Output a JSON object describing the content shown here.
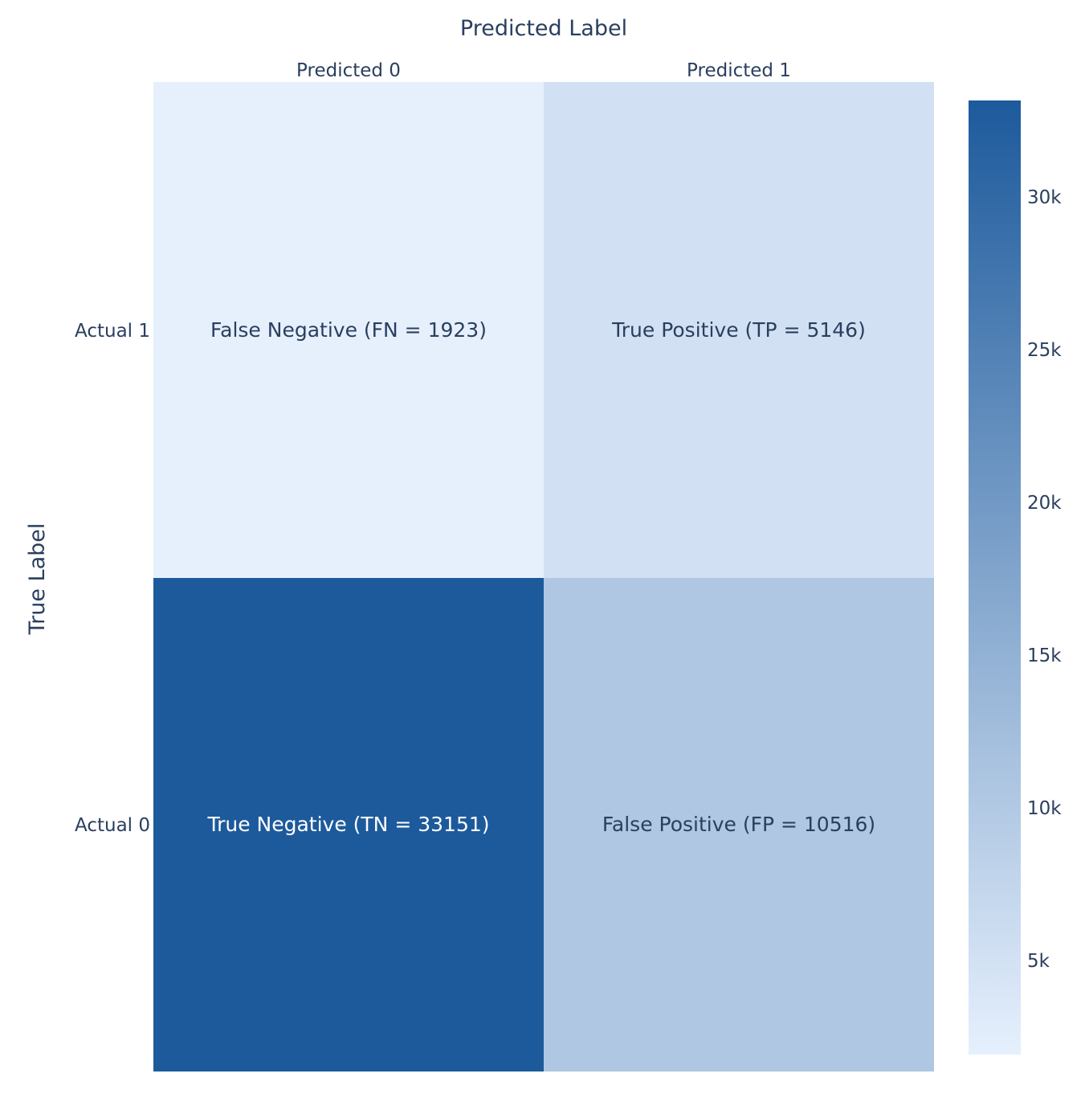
{
  "chart_data": {
    "type": "heatmap",
    "title": "",
    "xlabel": "Predicted Label",
    "ylabel": "True Label",
    "x_categories": [
      "Predicted 0",
      "Predicted 1"
    ],
    "y_categories": [
      "Actual 1",
      "Actual 0"
    ],
    "z": [
      [
        1923,
        5146
      ],
      [
        33151,
        10516
      ]
    ],
    "cell_text": [
      [
        "False Negative (FN = 1923)",
        "True Positive (TP = 5146)"
      ],
      [
        "True Negative (TN = 33151)",
        "False Positive (FP = 10516)"
      ]
    ],
    "colorscale": [
      "#e6f0fd",
      "#1d5a9c"
    ],
    "zmin": 1923,
    "zmax": 33151,
    "colorbar_ticks": [
      {
        "value": 5000,
        "label": "5k"
      },
      {
        "value": 10000,
        "label": "10k"
      },
      {
        "value": 15000,
        "label": "15k"
      },
      {
        "value": 20000,
        "label": "20k"
      },
      {
        "value": 25000,
        "label": "25k"
      },
      {
        "value": 30000,
        "label": "30k"
      }
    ],
    "x_axis_side": "top",
    "colorbar_position": "right",
    "grid": false
  }
}
